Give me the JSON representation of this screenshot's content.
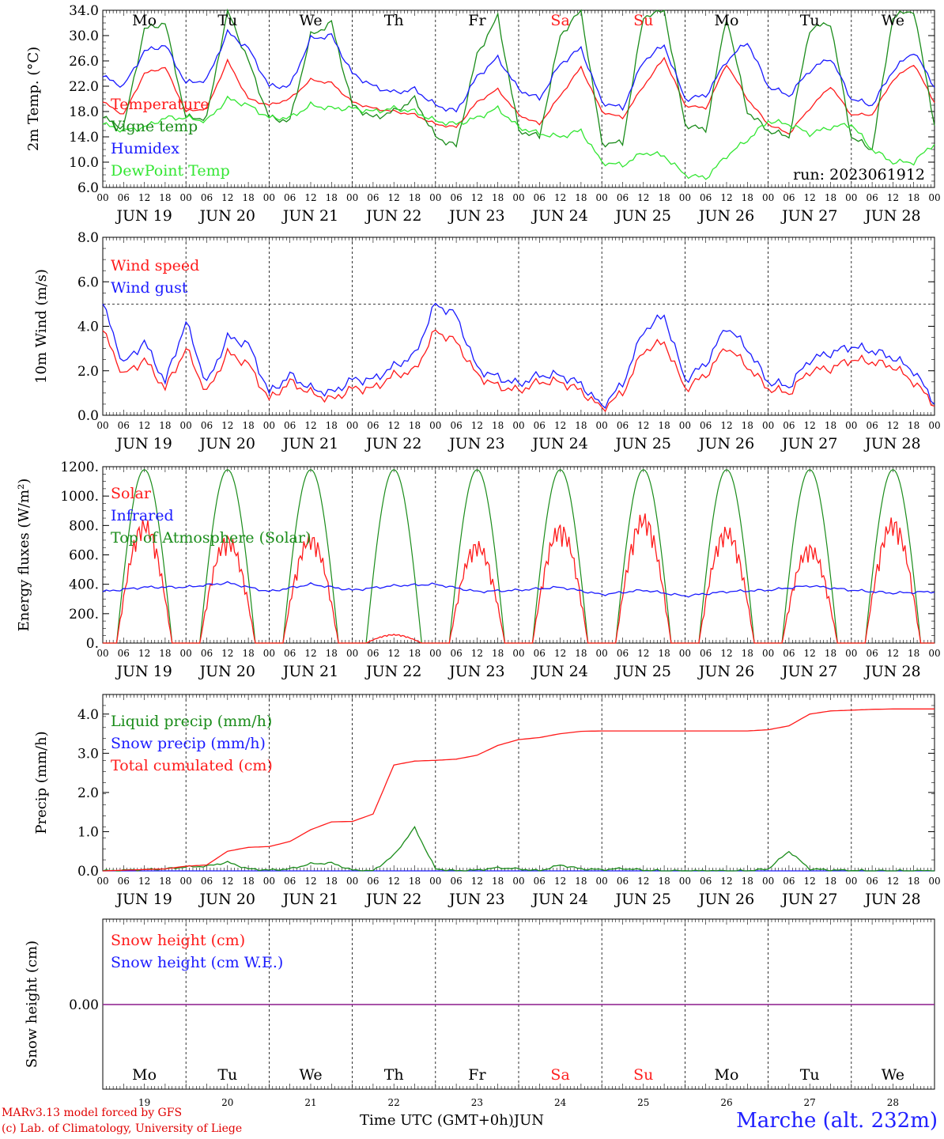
{
  "meta": {
    "run_label": "run: 2023061912",
    "credit_line1": "MARv3.13 model forced by GFS",
    "credit_line2": "(c) Lab. of Climatology, University of Liege",
    "time_axis_label": "Time UTC (GMT+0h)",
    "month_label": "JUN",
    "station": "Marche (alt. 232m)"
  },
  "days": {
    "weekdays": [
      "Mo",
      "Tu",
      "We",
      "Th",
      "Fr",
      "Sa",
      "Su",
      "Mo",
      "Tu",
      "We"
    ],
    "weekday_colors": [
      "#000000",
      "#000000",
      "#000000",
      "#000000",
      "#000000",
      "#ff2020",
      "#ff2020",
      "#000000",
      "#000000",
      "#000000"
    ],
    "dates": [
      "JUN 19",
      "JUN 20",
      "JUN 21",
      "JUN 22",
      "JUN 23",
      "JUN 24",
      "JUN 25",
      "JUN 26",
      "JUN 27",
      "JUN 28"
    ],
    "day_numbers": [
      "19",
      "20",
      "21",
      "22",
      "23",
      "24",
      "25",
      "26",
      "27",
      "28"
    ],
    "hour_ticks": [
      "00",
      "06",
      "12",
      "18"
    ],
    "final_hour": "00"
  },
  "colors": {
    "red": "#ff1a1a",
    "blue": "#1a1aff",
    "dark_green": "#1a8c1a",
    "light_green": "#33e633",
    "purple": "#8b1a8b"
  },
  "chart_data": [
    {
      "id": "temperature",
      "type": "line",
      "ylabel": "2m Temp. (°C)",
      "ylim": [
        6,
        34
      ],
      "yticks": [
        "6.0",
        "10.0",
        "14.0",
        "18.0",
        "22.0",
        "26.0",
        "30.0",
        "34.0"
      ],
      "x_hours": [
        0,
        6,
        12,
        18,
        24,
        30,
        36,
        42,
        48,
        54,
        60,
        66,
        72,
        78,
        84,
        90,
        96,
        102,
        108,
        114,
        120,
        126,
        132,
        138,
        144,
        150,
        156,
        162,
        168,
        174,
        180,
        186,
        192,
        198,
        204,
        210,
        216,
        222,
        228,
        234,
        240
      ],
      "series": [
        {
          "name": "Temperature",
          "color": "red",
          "values": [
            19.5,
            17.5,
            24,
            25,
            18,
            18.5,
            26,
            20,
            19,
            20,
            23,
            22.5,
            19.5,
            18.5,
            18,
            17.5,
            16,
            15.5,
            19.5,
            21.5,
            17.5,
            16,
            20.5,
            25,
            18,
            17,
            22,
            26.5,
            19,
            18.5,
            25.5,
            20,
            16,
            14.5,
            18.5,
            22,
            17.5,
            17.5,
            23,
            25.5,
            19.5
          ]
        },
        {
          "name": "Vigne temp",
          "color": "dark_green",
          "values": [
            17,
            15.5,
            31,
            32,
            17,
            17,
            34,
            26,
            17,
            16.5,
            30,
            32,
            19,
            17,
            18,
            20,
            14,
            12.5,
            27,
            33,
            15,
            14,
            30,
            34,
            13,
            13,
            33,
            34,
            16,
            15,
            33,
            18,
            15,
            14,
            31,
            32,
            14,
            12,
            33,
            34,
            16
          ]
        },
        {
          "name": "Humidex",
          "color": "blue",
          "values": [
            23.5,
            22,
            27.5,
            28.5,
            22.5,
            23,
            30.5,
            28,
            22,
            22,
            29.5,
            30,
            24,
            22,
            21,
            21.5,
            19,
            18,
            23.5,
            26.5,
            21.5,
            20,
            25.5,
            28,
            19.5,
            18.5,
            26,
            28.5,
            20,
            20.5,
            26,
            29,
            22,
            20.5,
            24.5,
            26.5,
            20,
            19,
            24.5,
            27.5,
            22
          ]
        },
        {
          "name": "DewPoint Temp",
          "color": "light_green",
          "values": [
            16,
            15,
            15.5,
            17,
            17,
            16.5,
            20,
            19,
            17,
            17,
            19,
            18.5,
            18.5,
            18,
            18.5,
            18,
            16.5,
            16,
            17,
            18.5,
            15.5,
            14.5,
            14,
            15,
            10,
            9.5,
            11.5,
            11,
            8,
            7.5,
            11,
            13.5,
            16.5,
            16,
            14.5,
            15.5,
            16,
            12,
            10,
            10,
            13
          ]
        }
      ]
    },
    {
      "id": "wind",
      "type": "line",
      "ylabel": "10m Wind (m/s)",
      "ylim": [
        0,
        8
      ],
      "yticks": [
        "0.0",
        "2.0",
        "4.0",
        "6.0",
        "8.0"
      ],
      "reference_line": 5,
      "x_hours": [
        0,
        6,
        12,
        18,
        24,
        30,
        36,
        42,
        48,
        54,
        60,
        66,
        72,
        78,
        84,
        90,
        96,
        102,
        108,
        114,
        120,
        126,
        132,
        138,
        144,
        150,
        156,
        162,
        168,
        174,
        180,
        186,
        192,
        198,
        204,
        210,
        216,
        222,
        228,
        234,
        240
      ],
      "series": [
        {
          "name": "Wind speed",
          "color": "red",
          "values": [
            3.8,
            1.8,
            2.5,
            1.2,
            3,
            1,
            2.8,
            2.3,
            0.7,
            1.5,
            1,
            0.7,
            1.2,
            1.2,
            1.8,
            2,
            3.8,
            3.3,
            1.8,
            1.3,
            1.1,
            1.5,
            1.5,
            1.1,
            0.3,
            1,
            2.9,
            3.3,
            1.2,
            1.8,
            3.1,
            2.2,
            1.2,
            1,
            2,
            2.1,
            2.5,
            2.4,
            2.2,
            1.5,
            0.5
          ]
        },
        {
          "name": "Wind gust",
          "color": "blue",
          "values": [
            5,
            2.3,
            3.3,
            1.5,
            4.2,
            1.4,
            3.5,
            3.2,
            1,
            1.8,
            1.2,
            1,
            1.6,
            1.6,
            2.2,
            2.7,
            5,
            4.5,
            2.1,
            1.7,
            1.4,
            1.8,
            1.8,
            1.4,
            0.4,
            1.4,
            3.8,
            4.5,
            1.6,
            2.3,
            4,
            3,
            1.5,
            1.3,
            2.5,
            2.8,
            3.1,
            2.9,
            2.6,
            2,
            0.6
          ]
        }
      ]
    },
    {
      "id": "energy",
      "type": "line",
      "ylabel": "Energy fluxes (W/m²)",
      "ylim": [
        0,
        1200
      ],
      "yticks": [
        "0.",
        "200.",
        "400.",
        "600.",
        "800.",
        "1000.",
        "1200."
      ],
      "sunrise_hour": 4,
      "sunset_hour": 20,
      "series": [
        {
          "name": "Solar",
          "color": "red",
          "daily_peaks": [
            850,
            740,
            750,
            60,
            700,
            820,
            890,
            800,
            680,
            860
          ]
        },
        {
          "name": "Infrared",
          "color": "blue",
          "x_hours": [
            0,
            12,
            24,
            36,
            48,
            60,
            72,
            84,
            96,
            108,
            120,
            132,
            144,
            156,
            168,
            180,
            192,
            204,
            216,
            228,
            240
          ],
          "values": [
            350,
            380,
            380,
            410,
            350,
            400,
            360,
            390,
            400,
            350,
            360,
            380,
            330,
            360,
            320,
            350,
            360,
            390,
            360,
            340,
            350
          ]
        },
        {
          "name": "Top of Atmosphere (Solar)",
          "color": "dark_green",
          "daily_peaks": [
            1180,
            1180,
            1180,
            1180,
            1180,
            1180,
            1180,
            1180,
            1180,
            1180
          ]
        }
      ]
    },
    {
      "id": "precip",
      "type": "line",
      "ylabel": "Precip (mm/h)",
      "ylim": [
        0,
        4.5
      ],
      "yticks": [
        "0.0",
        "1.0",
        "2.0",
        "3.0",
        "4.0"
      ],
      "x_hours": [
        0,
        18,
        24,
        30,
        36,
        42,
        48,
        54,
        60,
        66,
        72,
        78,
        84,
        90,
        96,
        102,
        108,
        114,
        120,
        126,
        132,
        138,
        144,
        150,
        156,
        162,
        168,
        174,
        180,
        186,
        192,
        198,
        204,
        210,
        216,
        222,
        228,
        234,
        240
      ],
      "series": [
        {
          "name": "Liquid precip (mm/h)",
          "color": "dark_green",
          "values": [
            0,
            0.05,
            0.1,
            0.12,
            0.22,
            0.05,
            0.02,
            0.05,
            0.18,
            0.2,
            0.02,
            0,
            0.4,
            1.1,
            0.05,
            0,
            0.02,
            0.08,
            0.05,
            0,
            0.15,
            0.05,
            0.03,
            0.06,
            0.02,
            0,
            0,
            0,
            0,
            0,
            0.05,
            0.5,
            0.05,
            0.02,
            0.01,
            0,
            0,
            0,
            0
          ]
        },
        {
          "name": "Snow precip (mm/h)",
          "color": "blue",
          "values": [
            0,
            0,
            0,
            0,
            0,
            0,
            0,
            0,
            0,
            0,
            0,
            0,
            0,
            0,
            0,
            0,
            0,
            0,
            0,
            0,
            0,
            0,
            0,
            0,
            0,
            0,
            0,
            0,
            0,
            0,
            0,
            0,
            0,
            0,
            0,
            0,
            0,
            0,
            0
          ]
        },
        {
          "name": "Total cumulated (cm)",
          "color": "red",
          "values": [
            0,
            0.05,
            0.12,
            0.15,
            0.5,
            0.6,
            0.62,
            0.75,
            1.05,
            1.25,
            1.26,
            1.45,
            2.7,
            2.8,
            2.82,
            2.85,
            2.95,
            3.2,
            3.35,
            3.4,
            3.5,
            3.56,
            3.57,
            3.57,
            3.57,
            3.57,
            3.57,
            3.57,
            3.57,
            3.57,
            3.6,
            3.7,
            4.0,
            4.08,
            4.1,
            4.12,
            4.13,
            4.13,
            4.13
          ]
        }
      ]
    },
    {
      "id": "snow",
      "type": "line",
      "ylabel": "Snow height (cm)",
      "yticks": [
        "0.00"
      ],
      "series": [
        {
          "name": "Snow height (cm)",
          "color": "red",
          "values": [
            0,
            0
          ]
        },
        {
          "name": "Snow height (cm W.E.)",
          "color": "blue",
          "values": [
            0,
            0
          ]
        }
      ]
    }
  ]
}
